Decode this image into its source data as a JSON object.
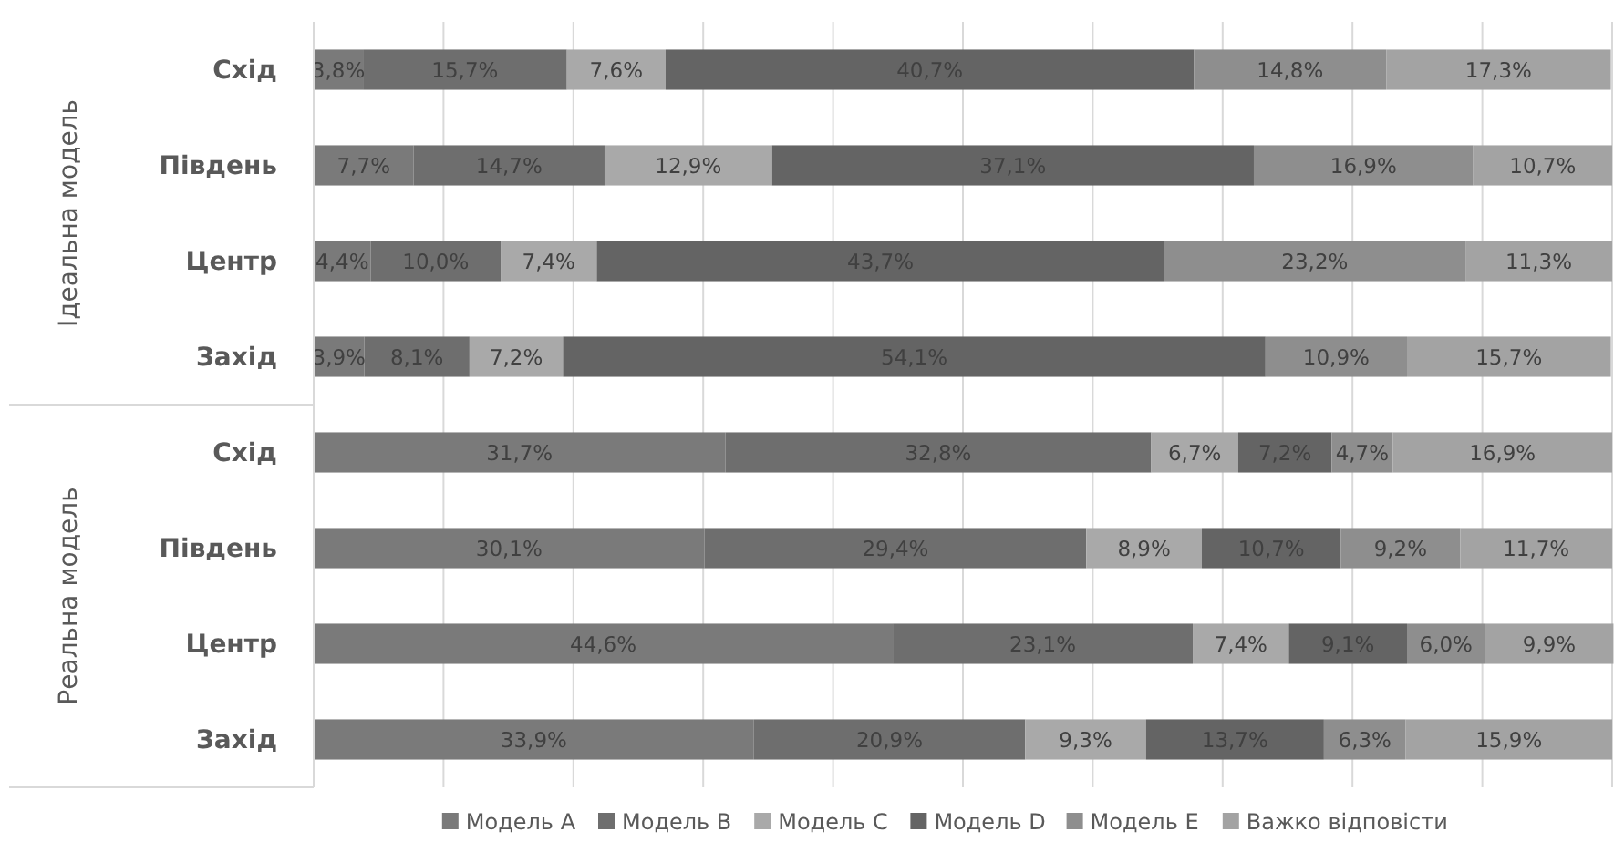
{
  "chart_data": {
    "type": "bar",
    "orientation": "horizontal",
    "stacked": true,
    "categories": [
      "Схід",
      "Південь",
      "Центр",
      "Захід",
      "Схід",
      "Південь",
      "Центр",
      "Захід"
    ],
    "annotations": [
      "Ідеальна модель",
      "Реальна модель"
    ],
    "xlim": [
      0,
      100
    ],
    "xticks": [
      {
        "value": 0,
        "label": null
      },
      {
        "value": 10,
        "label": null
      },
      {
        "value": 20,
        "label": null
      },
      {
        "value": 30,
        "label": null
      },
      {
        "value": 40,
        "label": null
      },
      {
        "value": 50,
        "label": null
      },
      {
        "value": 60,
        "label": null
      },
      {
        "value": 70,
        "label": null
      },
      {
        "value": 80,
        "label": null
      },
      {
        "value": 90,
        "label": null
      },
      {
        "value": 100,
        "label": null
      }
    ],
    "grid": "x",
    "tick_labels": "y",
    "legend": "bottom",
    "series": [
      {
        "name": "Модель A",
        "color": "#7a7a7a",
        "values": [
          3.8,
          7.7,
          4.4,
          3.9,
          31.7,
          30.1,
          44.6,
          33.9
        ],
        "value_labels": [
          "3,8%",
          "7,7%",
          "4,4%",
          "3,9%",
          "31,7%",
          "30,1%",
          "44,6%",
          "33,9%"
        ]
      },
      {
        "name": "Модель B",
        "color": "#6e6e6e",
        "values": [
          15.7,
          14.7,
          10.0,
          8.1,
          32.8,
          29.4,
          23.1,
          20.9
        ],
        "value_labels": [
          "15,7%",
          "14,7%",
          "10,0%",
          "8,1%",
          "32,8%",
          "29,4%",
          "23,1%",
          "20,9%"
        ]
      },
      {
        "name": "Модель C",
        "color": "#a9a9a9",
        "values": [
          7.6,
          12.9,
          7.4,
          7.2,
          6.7,
          8.9,
          7.4,
          9.3
        ],
        "value_labels": [
          "7,6%",
          "12,9%",
          "7,4%",
          "7,2%",
          "6,7%",
          "8,9%",
          "7,4%",
          "9,3%"
        ]
      },
      {
        "name": "Модель D",
        "color": "#646464",
        "values": [
          40.7,
          37.1,
          43.7,
          54.1,
          7.2,
          10.7,
          9.1,
          13.7
        ],
        "value_labels": [
          "40,7%",
          "37,1%",
          "43,7%",
          "54,1%",
          "7,2%",
          "10,7%",
          "9,1%",
          "13,7%"
        ]
      },
      {
        "name": "Модель E",
        "color": "#8e8e8e",
        "values": [
          14.8,
          16.9,
          23.2,
          10.9,
          4.7,
          9.2,
          6.0,
          6.3
        ],
        "value_labels": [
          "14,8%",
          "16,9%",
          "23,2%",
          "10,9%",
          "4,7%",
          "9,2%",
          "6,0%",
          "6,3%"
        ]
      },
      {
        "name": "Важко відповісти",
        "color": "#a3a3a3",
        "values": [
          17.3,
          10.7,
          11.3,
          15.7,
          16.9,
          11.7,
          9.9,
          15.9
        ],
        "value_labels": [
          "17,3%",
          "10,7%",
          "11,3%",
          "15,7%",
          "16,9%",
          "11,7%",
          "9,9%",
          "15,9%"
        ]
      }
    ]
  }
}
